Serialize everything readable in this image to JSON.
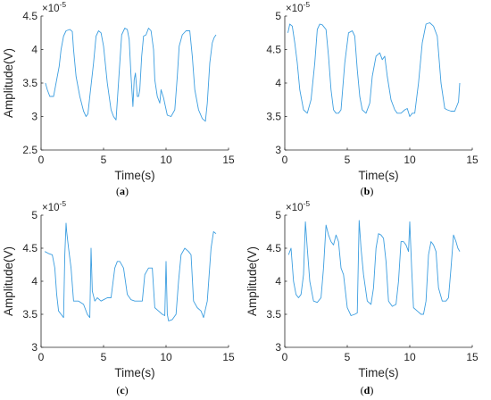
{
  "chart_data": [
    {
      "type": "line",
      "panel": "a",
      "caption": "a",
      "xlabel": "Time(s)",
      "ylabel": "Amplitude(V)",
      "xlim": [
        0,
        15
      ],
      "ylim": [
        2.5,
        4.5
      ],
      "xticks": [
        "0",
        "5",
        "10",
        "15"
      ],
      "yticks": [
        "2.5",
        "3",
        "3.5",
        "4",
        "4.5"
      ],
      "yexponent_base": "×10",
      "yexponent_power": "-5",
      "grid": false,
      "series_color": "#3c9ee0",
      "series": [
        {
          "x": [
            0.35,
            0.5,
            0.7,
            1.0,
            1.2,
            1.45,
            1.6,
            1.8,
            2.0,
            2.3,
            2.5,
            2.6,
            2.8,
            3.1,
            3.4,
            3.6,
            3.75,
            3.9,
            4.2,
            4.4,
            4.6,
            4.8,
            5.0,
            5.3,
            5.6,
            5.8,
            6.0,
            6.3,
            6.45,
            6.7,
            6.9,
            7.05,
            7.2,
            7.35,
            7.45,
            7.55,
            7.7,
            7.8,
            7.9,
            8.05,
            8.2,
            8.4,
            8.6,
            8.8,
            9.0,
            9.1,
            9.3,
            9.5,
            9.6,
            9.8,
            10.1,
            10.4,
            10.7,
            10.9,
            11.05,
            11.3,
            11.6,
            11.9,
            12.1,
            12.3,
            12.6,
            12.9,
            13.15,
            13.3,
            13.5,
            13.7,
            13.85,
            14.0
          ],
          "y": [
            3.5,
            3.4,
            3.3,
            3.3,
            3.5,
            3.75,
            4.0,
            4.2,
            4.28,
            4.3,
            4.27,
            4.0,
            3.6,
            3.3,
            3.08,
            3.0,
            3.04,
            3.3,
            3.8,
            4.2,
            4.28,
            4.25,
            4.05,
            3.5,
            3.1,
            3.0,
            2.95,
            3.8,
            4.22,
            4.32,
            4.3,
            4.15,
            3.6,
            3.15,
            3.55,
            3.65,
            3.3,
            3.3,
            3.4,
            3.9,
            4.2,
            4.22,
            4.32,
            4.28,
            4.0,
            3.55,
            3.3,
            3.2,
            3.4,
            3.28,
            3.02,
            3.0,
            3.1,
            3.6,
            4.05,
            4.22,
            4.28,
            4.28,
            3.9,
            3.4,
            3.1,
            2.97,
            2.93,
            3.2,
            3.8,
            4.1,
            4.18,
            4.22
          ]
        }
      ]
    },
    {
      "type": "line",
      "panel": "b",
      "caption": "b",
      "xlabel": "Time(s)",
      "ylabel": "",
      "xlim": [
        0,
        15
      ],
      "ylim": [
        3,
        5
      ],
      "xticks": [
        "0",
        "5",
        "10",
        "15"
      ],
      "yticks": [
        "3",
        "3.5",
        "4",
        "4.5",
        "5"
      ],
      "yexponent_base": "×10",
      "yexponent_power": "-5",
      "grid": false,
      "series_color": "#3c9ee0",
      "series": [
        {
          "x": [
            0.25,
            0.4,
            0.6,
            0.8,
            1.0,
            1.2,
            1.5,
            1.8,
            2.1,
            2.4,
            2.6,
            2.8,
            3.0,
            3.3,
            3.5,
            3.7,
            3.9,
            4.1,
            4.3,
            4.5,
            4.8,
            5.1,
            5.4,
            5.6,
            5.8,
            6.0,
            6.2,
            6.5,
            6.8,
            7.0,
            7.3,
            7.6,
            7.8,
            8.0,
            8.2,
            8.5,
            8.8,
            9.0,
            9.3,
            9.6,
            9.8,
            10.0,
            10.2,
            10.4,
            10.7,
            11.0,
            11.3,
            11.6,
            11.9,
            12.2,
            12.5,
            12.8,
            13.0,
            13.3,
            13.6,
            13.9,
            14.0
          ],
          "y": [
            4.75,
            4.88,
            4.85,
            4.6,
            4.3,
            3.9,
            3.6,
            3.55,
            3.75,
            4.3,
            4.8,
            4.88,
            4.87,
            4.8,
            4.4,
            3.9,
            3.6,
            3.55,
            3.55,
            3.6,
            4.3,
            4.75,
            4.78,
            4.7,
            4.2,
            3.8,
            3.6,
            3.55,
            3.7,
            4.1,
            4.4,
            4.45,
            4.35,
            4.4,
            4.1,
            3.75,
            3.6,
            3.55,
            3.55,
            3.6,
            3.62,
            3.5,
            3.55,
            3.55,
            4.0,
            4.6,
            4.88,
            4.9,
            4.85,
            4.7,
            4.0,
            3.62,
            3.6,
            3.58,
            3.58,
            3.72,
            4.0
          ]
        }
      ]
    },
    {
      "type": "line",
      "panel": "c",
      "caption": "c",
      "xlabel": "Time(s)",
      "ylabel": "Amplitude(V)",
      "xlim": [
        0,
        15
      ],
      "ylim": [
        3,
        5
      ],
      "xticks": [
        "0",
        "5",
        "10",
        "15"
      ],
      "yticks": [
        "3",
        "3.5",
        "4",
        "4.5",
        "5"
      ],
      "yexponent_base": "×10",
      "yexponent_power": "-5",
      "grid": false,
      "series_color": "#3c9ee0",
      "series": [
        {
          "x": [
            0.3,
            0.6,
            0.9,
            1.1,
            1.25,
            1.4,
            1.6,
            1.8,
            1.9,
            2.0,
            2.05,
            2.2,
            2.4,
            2.6,
            3.0,
            3.4,
            3.7,
            3.9,
            4.0,
            4.1,
            4.3,
            4.5,
            4.8,
            5.0,
            5.3,
            5.6,
            5.9,
            6.1,
            6.3,
            6.6,
            6.9,
            7.2,
            7.5,
            7.8,
            8.1,
            8.3,
            8.6,
            8.9,
            9.1,
            9.4,
            9.7,
            9.9,
            10.0,
            10.1,
            10.2,
            10.5,
            10.8,
            11.0,
            11.2,
            11.5,
            11.8,
            12.0,
            12.2,
            12.5,
            12.8,
            13.0,
            13.3,
            13.6,
            13.8,
            14.0
          ],
          "y": [
            4.45,
            4.42,
            4.4,
            4.2,
            3.8,
            3.55,
            3.5,
            3.45,
            4.4,
            4.88,
            4.75,
            4.5,
            4.2,
            3.7,
            3.7,
            3.65,
            3.5,
            3.45,
            4.5,
            3.85,
            3.7,
            3.75,
            3.7,
            3.72,
            3.75,
            3.75,
            4.2,
            4.3,
            4.3,
            4.2,
            3.8,
            3.72,
            3.7,
            3.7,
            3.7,
            4.1,
            4.2,
            4.2,
            3.6,
            3.55,
            3.5,
            3.48,
            4.3,
            3.5,
            3.4,
            3.42,
            3.5,
            4.0,
            4.4,
            4.5,
            4.45,
            4.4,
            3.7,
            3.6,
            3.55,
            3.45,
            3.7,
            4.5,
            4.75,
            4.72
          ]
        }
      ]
    },
    {
      "type": "line",
      "panel": "d",
      "caption": "d",
      "xlabel": "Time(s)",
      "ylabel": "Amplitude(V)",
      "xlim": [
        0,
        15
      ],
      "ylim": [
        3,
        5
      ],
      "xticks": [
        "0",
        "5",
        "10",
        "15"
      ],
      "yticks": [
        "3",
        "3.5",
        "4",
        "4.5",
        "5"
      ],
      "yexponent_base": "×10",
      "yexponent_power": "-5",
      "grid": false,
      "series_color": "#3c9ee0",
      "series": [
        {
          "x": [
            0.3,
            0.5,
            0.7,
            0.9,
            1.1,
            1.3,
            1.5,
            1.65,
            1.8,
            2.0,
            2.3,
            2.6,
            2.9,
            3.1,
            3.3,
            3.5,
            3.7,
            3.9,
            4.1,
            4.3,
            4.5,
            4.7,
            5.0,
            5.3,
            5.6,
            5.8,
            5.95,
            6.1,
            6.3,
            6.6,
            6.9,
            7.1,
            7.3,
            7.5,
            7.7,
            7.9,
            8.1,
            8.3,
            8.6,
            8.9,
            9.1,
            9.3,
            9.5,
            9.7,
            9.9,
            10.0,
            10.15,
            10.3,
            10.6,
            10.9,
            11.1,
            11.3,
            11.5,
            11.7,
            11.9,
            12.1,
            12.3,
            12.6,
            12.9,
            13.1,
            13.3,
            13.5,
            13.7,
            13.85,
            14.0
          ],
          "y": [
            4.4,
            4.5,
            4.0,
            3.8,
            3.75,
            3.8,
            4.1,
            4.9,
            4.5,
            4.0,
            3.7,
            3.68,
            3.75,
            4.2,
            4.85,
            4.7,
            4.6,
            4.55,
            4.7,
            4.6,
            4.2,
            4.1,
            3.6,
            3.48,
            3.5,
            3.52,
            4.92,
            4.5,
            4.1,
            3.7,
            3.65,
            3.9,
            4.5,
            4.72,
            4.7,
            4.65,
            4.3,
            3.7,
            3.62,
            3.65,
            4.0,
            4.6,
            4.6,
            4.55,
            4.45,
            4.9,
            4.2,
            3.6,
            3.55,
            3.5,
            3.5,
            3.7,
            4.4,
            4.6,
            4.55,
            4.45,
            3.9,
            3.7,
            3.7,
            3.75,
            4.2,
            4.7,
            4.6,
            4.5,
            4.45
          ]
        }
      ]
    }
  ]
}
